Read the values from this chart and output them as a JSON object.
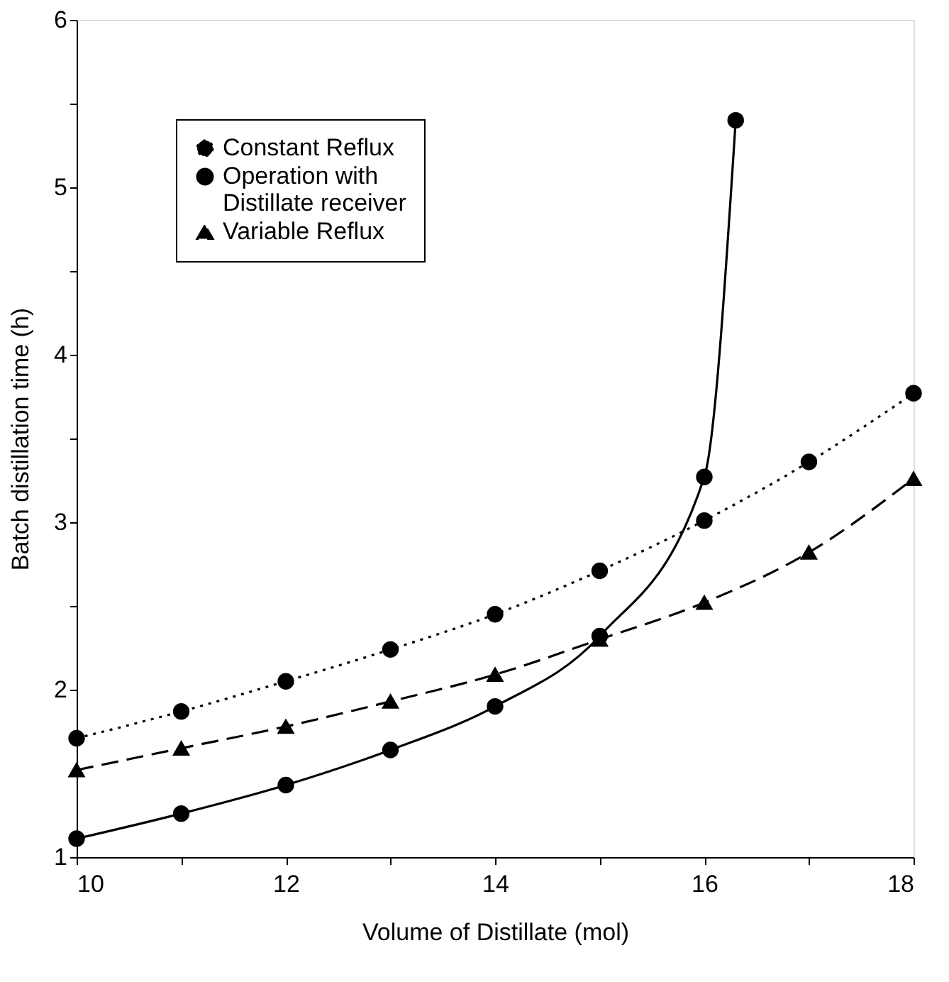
{
  "chart_data": {
    "type": "line",
    "xlabel": "Volume of Distillate (mol)",
    "ylabel": "Batch distillation time (h)",
    "xlim": [
      10,
      18
    ],
    "xticks": [
      10,
      {
        "value": 11,
        "label": null
      },
      12,
      {
        "value": 13,
        "label": null
      },
      14,
      {
        "value": 15,
        "label": null
      },
      16,
      {
        "value": 17,
        "label": null
      },
      18
    ],
    "ylim": [
      1,
      6
    ],
    "yticks": [
      1,
      {
        "value": 1.5,
        "label": null
      },
      2,
      {
        "value": 2.5,
        "label": null
      },
      3,
      {
        "value": 3.5,
        "label": null
      },
      4,
      {
        "value": 4.5,
        "label": null
      },
      5,
      {
        "value": 5.5,
        "label": null
      },
      6
    ],
    "grid": false,
    "legend": "top left",
    "series": [
      {
        "name": "Constant Reflux",
        "color": "#000000",
        "marker": "circle",
        "line_style": "dotted",
        "x": [
          10,
          11,
          12,
          13,
          14,
          15,
          16,
          17,
          18
        ],
        "values": [
          1.71,
          1.87,
          2.05,
          2.24,
          2.45,
          2.71,
          3.01,
          3.36,
          3.77
        ]
      },
      {
        "name": "Operation with\nDistillate receiver",
        "color": "#000000",
        "marker": "circle",
        "line_style": "solid",
        "x": [
          10,
          11,
          12,
          13,
          14,
          15,
          16,
          16.3
        ],
        "values": [
          1.11,
          1.26,
          1.43,
          1.64,
          1.9,
          2.32,
          3.27,
          5.4
        ]
      },
      {
        "name": "Variable Reflux",
        "color": "#000000",
        "marker": "triangle",
        "line_style": "dashed",
        "x": [
          10,
          11,
          12,
          13,
          14,
          15,
          16,
          17,
          18
        ],
        "values": [
          1.52,
          1.65,
          1.78,
          1.93,
          2.09,
          2.3,
          2.52,
          2.82,
          3.26
        ]
      }
    ]
  }
}
